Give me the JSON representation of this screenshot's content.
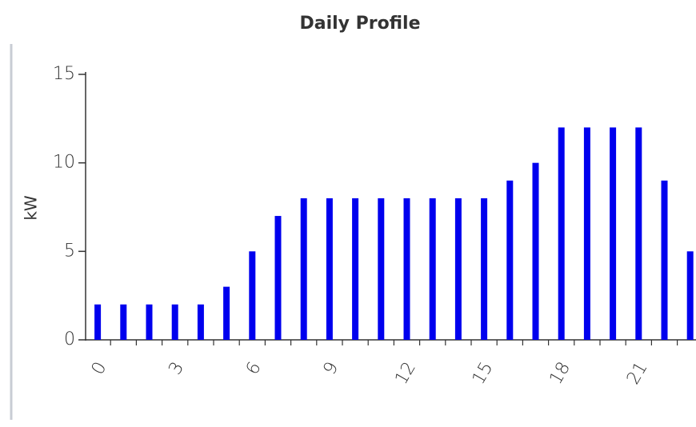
{
  "chart_data": {
    "type": "bar",
    "title": "Daily Profile",
    "y_label": "kW",
    "categories": [
      "0",
      null,
      null,
      "3",
      null,
      null,
      "6",
      null,
      null,
      "9",
      null,
      null,
      "12",
      null,
      null,
      "15",
      null,
      null,
      "18",
      null,
      null,
      "21",
      null,
      null
    ],
    "values": [
      2,
      2,
      2,
      2,
      2,
      3,
      5,
      7,
      8,
      8,
      8,
      8,
      8,
      8,
      8,
      8,
      9,
      10,
      12,
      12,
      12,
      12,
      9,
      5
    ],
    "color": "#0000ee",
    "ylim": [
      0,
      15
    ],
    "yticks": [
      0,
      5,
      10,
      15
    ],
    "grid": false
  }
}
